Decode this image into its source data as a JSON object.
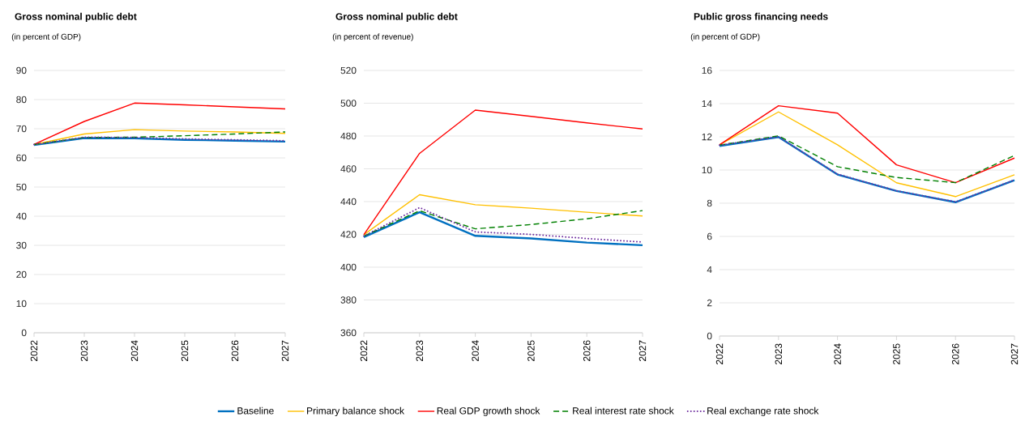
{
  "chart_data": [
    {
      "type": "line",
      "title": "Gross nominal public debt",
      "subtitle": "(in percent of GDP)",
      "categories": [
        "2022",
        "2023",
        "2024",
        "2025",
        "2026",
        "2027"
      ],
      "ylim": [
        0,
        90
      ],
      "yticks": [
        0,
        10,
        20,
        30,
        40,
        50,
        60,
        70,
        80,
        90
      ],
      "grid": "y",
      "legend": "bottom",
      "series": [
        {
          "name": "Baseline",
          "color": "#0070c0",
          "line_style": "solid",
          "values": [
            64.4,
            66.8,
            66.7,
            66.2,
            65.9,
            65.6
          ]
        },
        {
          "name": "Primary balance shock",
          "color": "#ffc000",
          "line_style": "solid",
          "values": [
            64.6,
            68.2,
            69.7,
            69.2,
            68.9,
            68.4
          ]
        },
        {
          "name": "Real GDP growth shock",
          "color": "#ff0000",
          "line_style": "solid",
          "values": [
            64.6,
            72.5,
            78.8,
            78.2,
            77.5,
            76.8
          ]
        },
        {
          "name": "Real interest rate shock",
          "color": "#008000",
          "line_style": "dashed",
          "values": [
            64.6,
            67.0,
            67.1,
            67.6,
            68.2,
            68.9
          ]
        },
        {
          "name": "Real exchange rate shock",
          "color": "#7030a0",
          "line_style": "dotted",
          "values": [
            64.6,
            67.1,
            67.0,
            66.5,
            66.2,
            65.9
          ]
        }
      ]
    },
    {
      "type": "line",
      "title": "Gross nominal public debt",
      "subtitle": "(in percent of revenue)",
      "categories": [
        "2022",
        "2023",
        "2024",
        "2025",
        "2026",
        "2027"
      ],
      "ylim": [
        360,
        520
      ],
      "yticks": [
        360,
        380,
        400,
        420,
        440,
        460,
        480,
        500,
        520
      ],
      "grid": "y",
      "series": [
        {
          "color": "#0070c0",
          "line_style": "solid",
          "values": [
            418.3,
            433.5,
            419.1,
            417.5,
            415,
            413.4
          ]
        },
        {
          "color": "#ffc000",
          "line_style": "solid",
          "values": [
            419.8,
            444.2,
            438.1,
            436,
            433.5,
            431.2
          ]
        },
        {
          "color": "#ff0000",
          "line_style": "solid",
          "values": [
            419.8,
            469.4,
            495.8,
            492,
            488,
            484.3
          ]
        },
        {
          "color": "#008000",
          "line_style": "dashed",
          "values": [
            419,
            434.4,
            423.4,
            426,
            429.5,
            434.5
          ]
        },
        {
          "color": "#7030a0",
          "line_style": "dotted",
          "values": [
            419,
            436.3,
            421.5,
            420,
            417.5,
            415.4
          ]
        }
      ]
    },
    {
      "type": "line",
      "title": "Public gross financing needs",
      "subtitle": "(in percent of GDP)",
      "categories": [
        "2022",
        "2023",
        "2024",
        "2025",
        "2026",
        "2027"
      ],
      "ylim": [
        0,
        16
      ],
      "yticks": [
        0,
        2,
        4,
        6,
        8,
        10,
        12,
        14,
        16
      ],
      "grid": "y",
      "series": [
        {
          "color": "#0070c0",
          "line_style": "solid",
          "values": [
            11.45,
            11.99,
            9.73,
            8.74,
            8.06,
            9.39
          ]
        },
        {
          "color": "#ffc000",
          "line_style": "solid",
          "values": [
            11.52,
            13.5,
            11.52,
            9.23,
            8.4,
            9.71
          ]
        },
        {
          "color": "#ff0000",
          "line_style": "solid",
          "values": [
            11.52,
            13.87,
            13.43,
            10.31,
            9.24,
            10.72
          ]
        },
        {
          "color": "#008000",
          "line_style": "dashed",
          "values": [
            11.5,
            12.06,
            10.2,
            9.55,
            9.24,
            10.88
          ]
        },
        {
          "color": "#7030a0",
          "line_style": "dotted",
          "values": [
            11.5,
            12.0,
            9.75,
            8.75,
            8.08,
            9.4
          ]
        }
      ]
    }
  ]
}
